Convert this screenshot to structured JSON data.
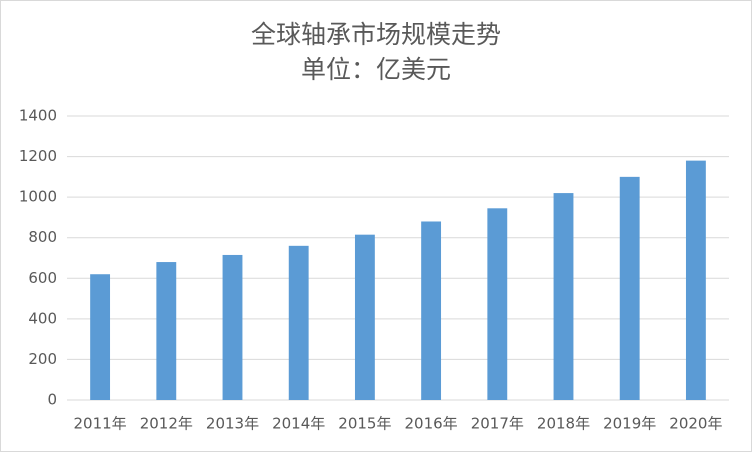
{
  "chart_data": {
    "type": "bar",
    "title": "全球轴承市场规模走势",
    "subtitle": "单位：亿美元",
    "categories": [
      "2011年",
      "2012年",
      "2013年",
      "2014年",
      "2015年",
      "2016年",
      "2017年",
      "2018年",
      "2019年",
      "2020年"
    ],
    "values": [
      620,
      680,
      715,
      760,
      815,
      880,
      945,
      1020,
      1100,
      1180
    ],
    "color": "#5b9bd5",
    "ylim": [
      0,
      1400
    ],
    "yticks": [
      0,
      200,
      400,
      600,
      800,
      1000,
      1200,
      1400
    ],
    "grid": true
  }
}
